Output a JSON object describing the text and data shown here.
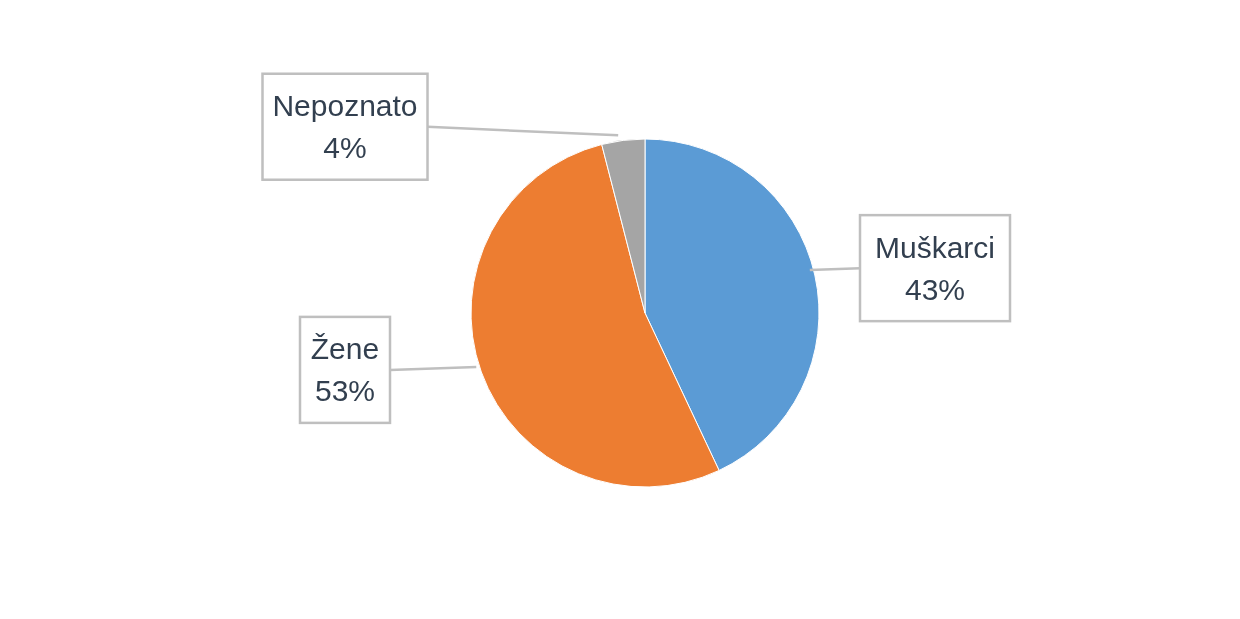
{
  "chart_data": {
    "type": "pie",
    "categories": [
      "Muškarci",
      "Žene",
      "Nepoznato"
    ],
    "values": [
      43,
      53,
      4
    ],
    "colors": [
      "#5b9bd5",
      "#ed7d31",
      "#a5a5a5"
    ],
    "value_labels": [
      "43%",
      "53%",
      "4%"
    ],
    "legend": false
  }
}
